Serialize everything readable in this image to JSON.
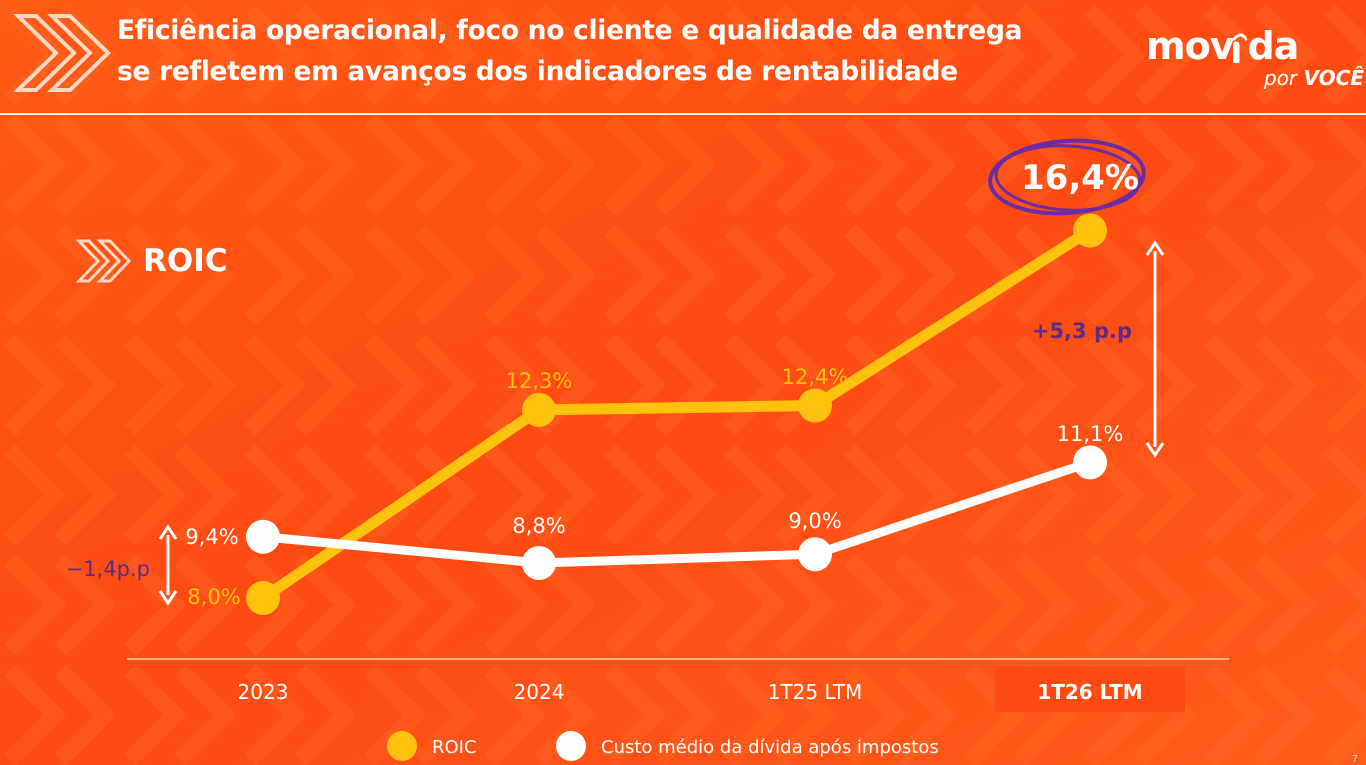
{
  "slide": {
    "title_lines": [
      "Eficiência operacional, foco no cliente e qualidade da entrega",
      "se refletem em avanços dos indicadores de rentabilidade"
    ],
    "section_label": "ROIC",
    "page_number": "7"
  },
  "brand": {
    "word_left": "mov",
    "word_right": "da",
    "tagline_prefix": "por",
    "tagline_word": "VOCÊ"
  },
  "colors": {
    "background": "#ff4d14",
    "roic_line": "#ffc30f",
    "debt_line": "#ffffff",
    "annotation_text": "#5b2a86",
    "highlight_circle": "#6a2ba3"
  },
  "chart_data": {
    "type": "line",
    "categories": [
      "2023",
      "2024",
      "1T25 LTM",
      "1T26 LTM"
    ],
    "highlighted_category": "1T26 LTM",
    "series": [
      {
        "name": "ROIC",
        "values": [
          8.0,
          12.3,
          12.4,
          16.4
        ],
        "labels": [
          "8,0%",
          "12,3%",
          "12,4%",
          "16,4%"
        ],
        "color": "#ffc30f"
      },
      {
        "name": "Custo médio da dívida após impostos",
        "values": [
          9.4,
          8.8,
          9.0,
          11.1
        ],
        "labels": [
          "9,4%",
          "8,8%",
          "9,0%",
          "11,1%"
        ],
        "color": "#ffffff"
      }
    ],
    "annotations": [
      {
        "text": "−1,4p.p",
        "category": "2023",
        "from_value": 9.4,
        "to_value": 8.0
      },
      {
        "text": "+5,3 p.p",
        "category": "1T26 LTM",
        "from_value": 16.4,
        "to_value": 11.1
      }
    ],
    "highlighted_label": "16,4%",
    "legend_position": "bottom",
    "grid": false
  }
}
